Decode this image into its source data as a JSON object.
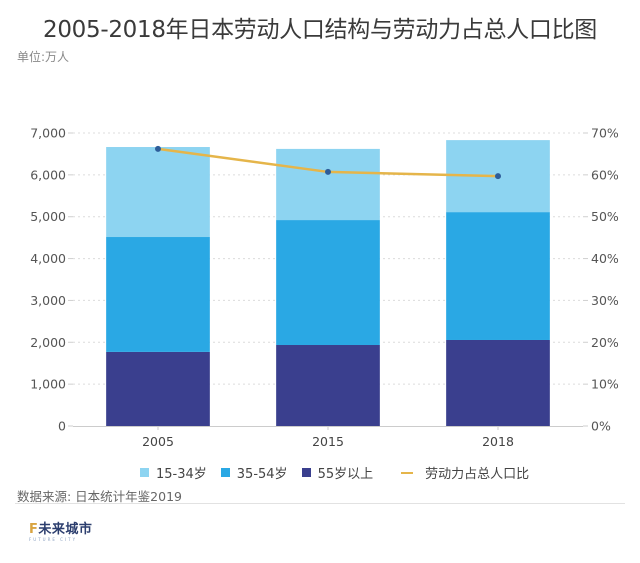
{
  "title": "2005-2018年日本劳动人口结构与劳动力占总人口比图",
  "unit_label": "单位:万人",
  "source_label": "数据来源: 日本统计年鉴2019",
  "logo": {
    "mark": "F",
    "text": "未来城市",
    "subtext": "FUTURE CITY"
  },
  "colors": {
    "age_15_34": "#8dd4f1",
    "age_35_54": "#2aa8e4",
    "age_55_plus": "#3a3f8e",
    "ratio_line": "#e5b54a",
    "ratio_marker": "#2d5d99"
  },
  "chart_data": {
    "type": "bar",
    "stacked": true,
    "title": "2005-2018年日本劳动人口结构与劳动力占总人口比图",
    "xlabel": "",
    "ylabel": "单位:万人",
    "categories": [
      "2005",
      "2015",
      "2018"
    ],
    "series": [
      {
        "name": "55岁以上",
        "type": "bar",
        "axis": "left",
        "color_key": "age_55_plus",
        "values": [
          1770,
          1935,
          2055
        ]
      },
      {
        "name": "35-54岁",
        "type": "bar",
        "axis": "left",
        "color_key": "age_35_54",
        "values": [
          2745,
          2985,
          3055
        ]
      },
      {
        "name": "15-34岁",
        "type": "bar",
        "axis": "left",
        "color_key": "age_15_34",
        "values": [
          2150,
          1700,
          1720
        ]
      },
      {
        "name": "劳动力占总人口比",
        "type": "line",
        "axis": "right",
        "color_key": "ratio_line",
        "values": [
          66.2,
          60.7,
          59.7
        ]
      }
    ],
    "ylim": [
      0,
      7000
    ],
    "yticks": [
      "0",
      "1,000",
      "2,000",
      "3,000",
      "4,000",
      "5,000",
      "6,000",
      "7,000"
    ],
    "y2lim": [
      0,
      70
    ],
    "y2ticks": [
      "0%",
      "10%",
      "20%",
      "30%",
      "40%",
      "50%",
      "60%",
      "70%"
    ],
    "grid": true,
    "legend_position": "bottom",
    "legend": [
      "15-34岁",
      "35-54岁",
      "55岁以上",
      "劳动力占总人口比"
    ]
  }
}
